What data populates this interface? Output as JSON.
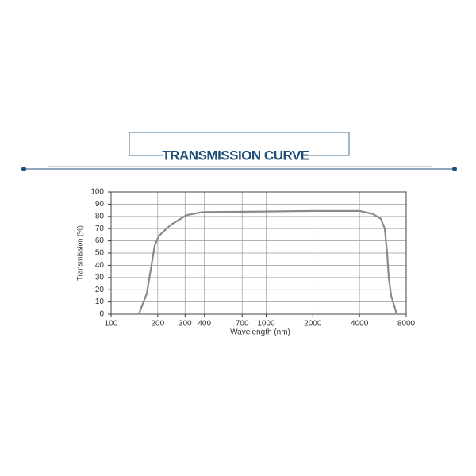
{
  "header": {
    "title": "TRANSMISSION CURVE"
  },
  "chart_data": {
    "type": "line",
    "xlabel": "Wavelength (nm)",
    "ylabel": "Transmission (%)",
    "x": [
      151,
      170,
      180,
      191,
      203,
      242,
      306,
      387,
      1000,
      2000,
      4000,
      4880,
      5490,
      5820,
      6030,
      6170,
      6400,
      6950
    ],
    "values": [
      0,
      17,
      36,
      56,
      64,
      73,
      81,
      83.5,
      84,
      84.5,
      84.5,
      82,
      78,
      70,
      50,
      30,
      15,
      0
    ],
    "color": "#8a8a8a",
    "xscale": "log",
    "grid": true,
    "xlim": [
      100,
      8000
    ],
    "xticks": [
      100,
      200,
      300,
      400,
      700,
      1000,
      2000,
      4000,
      8000
    ],
    "ylim": [
      0,
      100
    ],
    "yticks": [
      0,
      10,
      20,
      30,
      40,
      50,
      60,
      70,
      80,
      90,
      100
    ]
  }
}
